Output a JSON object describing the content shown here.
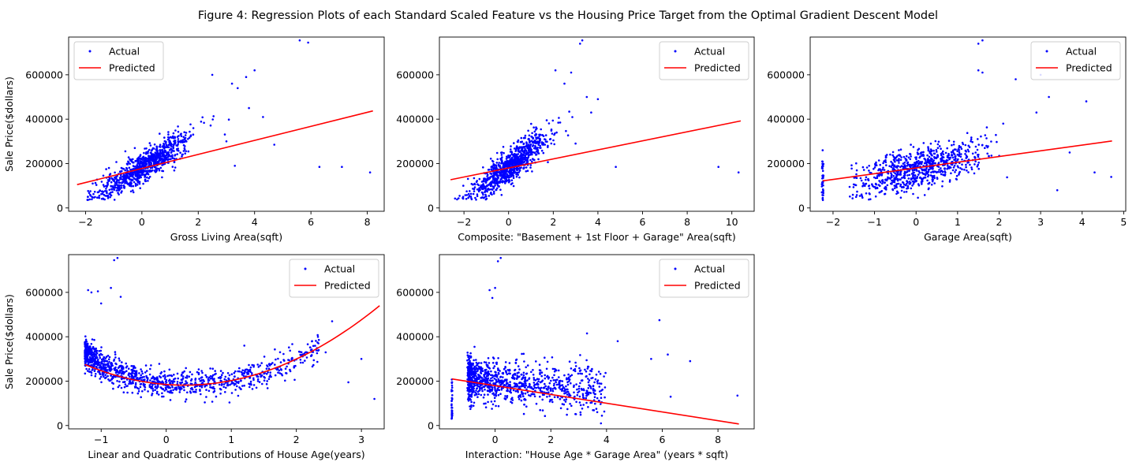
{
  "figure": {
    "title": "Figure 4: Regression Plots of each Standard Scaled Feature vs the Housing Price Target from the Optimal Gradient Descent Model"
  },
  "colors": {
    "actual": "#0000ff",
    "predicted": "#ff0000"
  },
  "chart_data": [
    {
      "type": "scatter",
      "xlabel": "Gross Living Area(sqft)",
      "ylabel": "Sale Price($dollars)",
      "xlim": [
        -2.6,
        8.6
      ],
      "ylim": [
        -15000,
        770000
      ],
      "xticks": [
        -2,
        0,
        2,
        4,
        6,
        8
      ],
      "yticks": [
        0,
        200000,
        400000,
        600000
      ],
      "legend": {
        "placement": "upper-left",
        "entries": [
          "Actual",
          "Predicted"
        ]
      },
      "series": [
        {
          "name": "Actual",
          "kind": "points",
          "cloud": {
            "seed": 11,
            "n": 900,
            "x_min": -2.3,
            "x_max": 3.2,
            "x_center": 0.1,
            "x_spread": 0.8,
            "y_intercept": 185000,
            "y_slope": 78000,
            "y_spread": 48000,
            "y_floor": 35000
          },
          "points": [
            [
              4.0,
              620000
            ],
            [
              3.7,
              590000
            ],
            [
              3.4,
              540000
            ],
            [
              3.2,
              560000
            ],
            [
              5.6,
              755000
            ],
            [
              5.9,
              745000
            ],
            [
              3.8,
              450000
            ],
            [
              4.3,
              410000
            ],
            [
              4.7,
              285000
            ],
            [
              6.3,
              185000
            ],
            [
              7.1,
              185000
            ],
            [
              8.1,
              160000
            ],
            [
              3.0,
              300000
            ],
            [
              3.3,
              190000
            ],
            [
              2.5,
              600000
            ]
          ]
        },
        {
          "name": "Predicted",
          "kind": "line",
          "x": [
            -2.3,
            8.2
          ],
          "y": [
            105000,
            437000
          ]
        }
      ]
    },
    {
      "type": "scatter",
      "xlabel": "Composite: \"Basement + 1st Floor + Garage\" Area(sqft)",
      "ylabel": "",
      "xlim": [
        -3.1,
        11.0
      ],
      "ylim": [
        -15000,
        770000
      ],
      "xticks": [
        -2,
        0,
        2,
        4,
        6,
        8,
        10
      ],
      "yticks": [
        0,
        200000,
        400000,
        600000
      ],
      "legend": {
        "placement": "upper-right",
        "entries": [
          "Actual",
          "Predicted"
        ]
      },
      "series": [
        {
          "name": "Actual",
          "kind": "points",
          "cloud": {
            "seed": 23,
            "n": 900,
            "x_min": -2.4,
            "x_max": 3.0,
            "x_center": 0.1,
            "x_spread": 0.85,
            "y_intercept": 185000,
            "y_slope": 75000,
            "y_spread": 48000,
            "y_floor": 35000
          },
          "points": [
            [
              3.2,
              740000
            ],
            [
              3.3,
              755000
            ],
            [
              2.1,
              620000
            ],
            [
              2.8,
              610000
            ],
            [
              3.5,
              500000
            ],
            [
              4.0,
              490000
            ],
            [
              3.7,
              430000
            ],
            [
              4.8,
              185000
            ],
            [
              9.4,
              185000
            ],
            [
              10.3,
              160000
            ],
            [
              2.5,
              560000
            ],
            [
              3.0,
              290000
            ]
          ]
        },
        {
          "name": "Predicted",
          "kind": "line",
          "x": [
            -2.6,
            10.4
          ],
          "y": [
            127000,
            392000
          ]
        }
      ]
    },
    {
      "type": "scatter",
      "xlabel": "Garage Area(sqft)",
      "ylabel": "",
      "xlim": [
        -2.55,
        5.05
      ],
      "ylim": [
        -15000,
        770000
      ],
      "xticks": [
        -2,
        -1,
        0,
        1,
        2,
        3,
        4,
        5
      ],
      "yticks": [
        0,
        200000,
        400000,
        600000
      ],
      "legend": {
        "placement": "upper-right",
        "entries": [
          "Actual",
          "Predicted"
        ]
      },
      "series": [
        {
          "name": "Actual",
          "kind": "points",
          "cloud": {
            "seed": 37,
            "n": 800,
            "x_min": -1.6,
            "x_max": 3.4,
            "x_center": 0.1,
            "x_spread": 0.75,
            "y_intercept": 175000,
            "y_slope": 45000,
            "y_spread": 60000,
            "y_floor": 35000
          },
          "strip": {
            "seed": 41,
            "n": 40,
            "x": -2.25,
            "x_jitter": 0.02,
            "y_min": 35000,
            "y_max": 210000
          },
          "points": [
            [
              -2.25,
              260000
            ],
            [
              1.6,
              755000
            ],
            [
              1.5,
              740000
            ],
            [
              1.5,
              620000
            ],
            [
              1.6,
              610000
            ],
            [
              2.4,
              580000
            ],
            [
              3.0,
              600000
            ],
            [
              3.2,
              500000
            ],
            [
              4.1,
              480000
            ],
            [
              3.7,
              250000
            ],
            [
              4.3,
              160000
            ],
            [
              4.7,
              140000
            ],
            [
              3.4,
              80000
            ],
            [
              2.9,
              430000
            ],
            [
              2.1,
              380000
            ]
          ]
        },
        {
          "name": "Predicted",
          "kind": "line",
          "x": [
            -2.25,
            4.72
          ],
          "y": [
            122000,
            302000
          ]
        }
      ]
    },
    {
      "type": "scatter",
      "xlabel": "Linear and Quadratic Contributions of House Age(years)",
      "ylabel": "Sale Price($dollars)",
      "xlim": [
        -1.5,
        3.35
      ],
      "ylim": [
        -15000,
        770000
      ],
      "xticks": [
        -1,
        0,
        1,
        2,
        3
      ],
      "yticks": [
        0,
        200000,
        400000,
        600000
      ],
      "legend": {
        "placement": "upper-right",
        "entries": [
          "Actual",
          "Predicted"
        ]
      },
      "series": [
        {
          "name": "Actual",
          "kind": "points",
          "cloud": {
            "seed": 53,
            "n": 1100,
            "x_min": -1.25,
            "x_max": 3.2,
            "x_skew": 2.0,
            "x_center": -1.25,
            "x_range": 3.6,
            "curve": [
              185000,
              -0.12,
              0.215
            ],
            "y_spread": 42000,
            "y_floor": 15000
          },
          "points": [
            [
              -1.2,
              610000
            ],
            [
              -1.15,
              600000
            ],
            [
              -1.05,
              605000
            ],
            [
              -0.8,
              745000
            ],
            [
              -0.75,
              755000
            ],
            [
              -0.85,
              620000
            ],
            [
              -1.0,
              550000
            ],
            [
              -0.7,
              580000
            ],
            [
              1.2,
              360000
            ],
            [
              2.55,
              470000
            ],
            [
              2.45,
              330000
            ],
            [
              3.0,
              300000
            ],
            [
              3.2,
              120000
            ],
            [
              2.8,
              195000
            ]
          ]
        },
        {
          "name": "Predicted",
          "kind": "line",
          "curve": [
            185000,
            -0.12,
            0.215
          ],
          "x_range": [
            -1.25,
            3.28
          ]
        }
      ]
    },
    {
      "type": "scatter",
      "xlabel": "Interaction: \"House Age * Garage Area\" (years * sqft)",
      "ylabel": "",
      "xlim": [
        -2.0,
        9.3
      ],
      "ylim": [
        -15000,
        770000
      ],
      "xticks": [
        0,
        2,
        4,
        6,
        8
      ],
      "yticks": [
        0,
        200000,
        400000,
        600000
      ],
      "legend": {
        "placement": "upper-right",
        "entries": [
          "Actual",
          "Predicted"
        ]
      },
      "series": [
        {
          "name": "Actual",
          "kind": "points",
          "cloud": {
            "seed": 71,
            "n": 1000,
            "x_min": -1.0,
            "x_max": 4.0,
            "x_skew": 2.3,
            "x_center": -0.9,
            "x_range": 5.0,
            "y_intercept": 200000,
            "y_slope": -12000,
            "y_spread": 65000,
            "y_floor": 40000,
            "x_offset": -0.3
          },
          "strip": {
            "seed": 79,
            "n": 35,
            "x": -1.55,
            "x_jitter": 0.015,
            "y_min": 30000,
            "y_max": 210000
          },
          "points": [
            [
              0.1,
              740000
            ],
            [
              0.2,
              755000
            ],
            [
              -0.2,
              610000
            ],
            [
              0.0,
              620000
            ],
            [
              -0.1,
              575000
            ],
            [
              5.9,
              475000
            ],
            [
              6.2,
              320000
            ],
            [
              5.6,
              300000
            ],
            [
              7.0,
              290000
            ],
            [
              4.4,
              380000
            ],
            [
              3.3,
              415000
            ],
            [
              6.3,
              130000
            ],
            [
              8.7,
              135000
            ],
            [
              3.8,
              10000
            ]
          ]
        },
        {
          "name": "Predicted",
          "kind": "line",
          "x": [
            -1.55,
            8.75
          ],
          "y": [
            210000,
            7000
          ]
        }
      ]
    }
  ]
}
